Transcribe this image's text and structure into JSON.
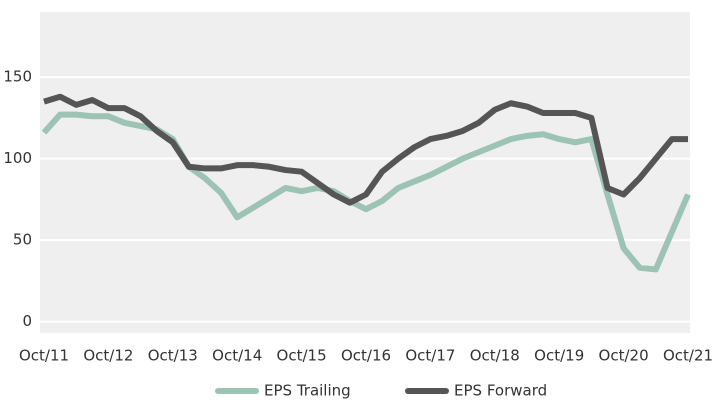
{
  "chart_data": {
    "type": "line",
    "x": [
      0,
      3,
      6,
      9,
      12,
      15,
      18,
      21,
      24,
      27,
      30,
      33,
      36,
      39,
      42,
      45,
      48,
      51,
      54,
      57,
      60,
      63,
      66,
      69,
      72,
      75,
      78,
      81,
      84,
      87,
      90,
      93,
      96,
      99,
      102,
      105,
      108,
      111,
      114,
      117,
      120
    ],
    "series": [
      {
        "name": "EPS Trailing",
        "color": "#9dc3b5",
        "values": [
          116,
          127,
          127,
          126,
          126,
          122,
          120,
          118,
          112,
          95,
          88,
          79,
          64,
          70,
          76,
          82,
          80,
          82,
          80,
          74,
          69,
          74,
          82,
          86,
          90,
          95,
          100,
          104,
          108,
          112,
          114,
          115,
          112,
          110,
          112,
          78,
          45,
          33,
          32,
          55,
          78
        ]
      },
      {
        "name": "EPS Forward",
        "color": "#555555",
        "values": [
          135,
          138,
          133,
          136,
          131,
          131,
          126,
          117,
          110,
          95,
          94,
          94,
          96,
          96,
          95,
          93,
          92,
          85,
          78,
          73,
          78,
          92,
          100,
          107,
          112,
          114,
          117,
          122,
          130,
          134,
          132,
          128,
          128,
          128,
          125,
          82,
          78,
          88,
          100,
          112,
          112
        ]
      }
    ],
    "xlim": [
      0,
      120
    ],
    "xticks": [
      {
        "value": 0,
        "label": "Oct/11"
      },
      {
        "value": 12,
        "label": "Oct/12"
      },
      {
        "value": 24,
        "label": "Oct/13"
      },
      {
        "value": 36,
        "label": "Oct/14"
      },
      {
        "value": 48,
        "label": "Oct/15"
      },
      {
        "value": 60,
        "label": "Oct/16"
      },
      {
        "value": 72,
        "label": "Oct/17"
      },
      {
        "value": 84,
        "label": "Oct/18"
      },
      {
        "value": 96,
        "label": "Oct/19"
      },
      {
        "value": 108,
        "label": "Oct/20"
      },
      {
        "value": 120,
        "label": "Oct/21"
      }
    ],
    "ylim": [
      -7,
      190
    ],
    "yticks": [
      0,
      50,
      100,
      150
    ],
    "grid": true,
    "legend": "bottom"
  }
}
